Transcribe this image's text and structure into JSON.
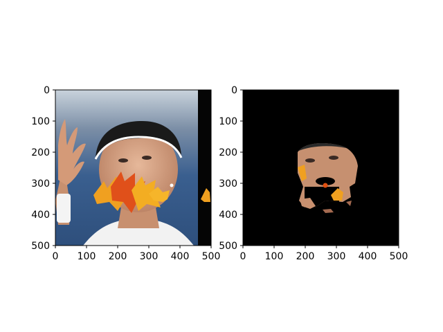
{
  "figure": {
    "panels": [
      {
        "id": "original",
        "content": "tennis player looking up, white visor, hand raised, orange maple leaves over mouth, blue background",
        "x_ticks": [
          "0",
          "100",
          "200",
          "300",
          "400",
          "500"
        ],
        "y_ticks": [
          "0",
          "100",
          "200",
          "300",
          "400",
          "500"
        ],
        "xlim": [
          0,
          500
        ],
        "ylim": [
          0,
          500
        ]
      },
      {
        "id": "masked",
        "content": "same face cropped by mask on black background",
        "x_ticks": [
          "0",
          "100",
          "200",
          "300",
          "400",
          "500"
        ],
        "y_ticks": [
          "0",
          "100",
          "200",
          "300",
          "400",
          "500"
        ],
        "xlim": [
          0,
          500
        ],
        "ylim": [
          0,
          500
        ]
      }
    ],
    "colors": {
      "background_blue": "#3a5f8f",
      "sky_top": "#c9d3dc",
      "skin": "#d8a88a",
      "visor": "#1a1a1a",
      "leaf_orange": "#f0a020",
      "leaf_red": "#e0501a",
      "shirt": "#f2f2f2",
      "black": "#000000"
    }
  }
}
